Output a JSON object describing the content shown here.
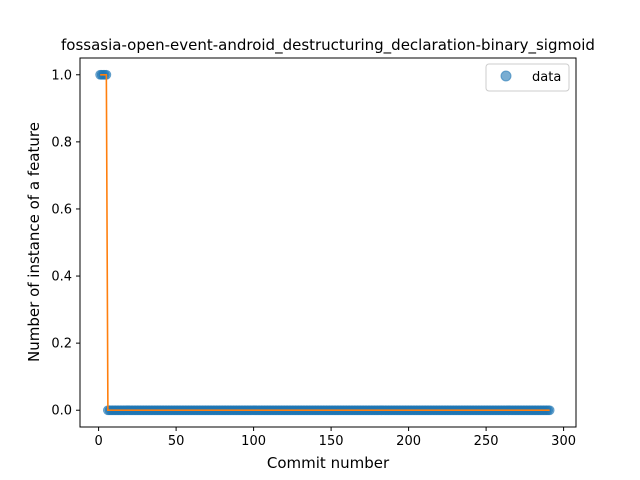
{
  "chart_data": {
    "type": "scatter",
    "title": "fossasia-open-event-android_destructuring_declaration-binary_sigmoid",
    "xlabel": "Commit number",
    "ylabel": "Number of instance of a feature",
    "xlim": [
      -12,
      308
    ],
    "ylim": [
      -0.05,
      1.05
    ],
    "xticks": [
      0,
      50,
      100,
      150,
      200,
      250,
      300
    ],
    "xtick_labels": [
      "0",
      "50",
      "100",
      "150",
      "200",
      "250",
      "300"
    ],
    "yticks": [
      0.0,
      0.2,
      0.4,
      0.6,
      0.8,
      1.0
    ],
    "ytick_labels": [
      "0.0",
      "0.2",
      "0.4",
      "0.6",
      "0.8",
      "1.0"
    ],
    "legend": {
      "position": "top-right",
      "entries": [
        "data"
      ]
    },
    "grid": false,
    "series": [
      {
        "name": "data",
        "kind": "scatter",
        "color": "#1f77b4",
        "alpha": 0.6,
        "segments": [
          {
            "x_start": 1,
            "x_end": 5,
            "y": 1
          },
          {
            "x_start": 6,
            "x_end": 291,
            "y": 0
          }
        ]
      },
      {
        "kind": "line",
        "color": "#ff7f0e",
        "points": [
          [
            1,
            1
          ],
          [
            5,
            1
          ],
          [
            6,
            0
          ],
          [
            291,
            0
          ]
        ]
      }
    ]
  }
}
